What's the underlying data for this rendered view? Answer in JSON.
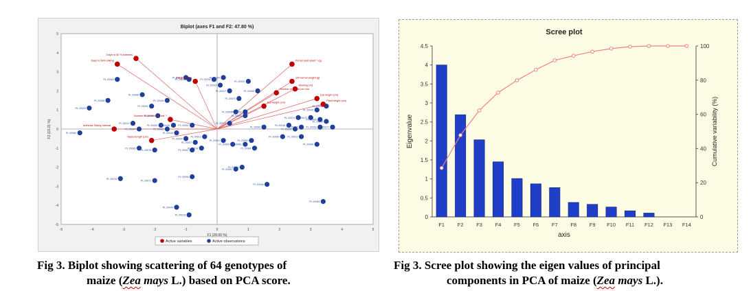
{
  "chart_data": [
    {
      "type": "scatter",
      "title": "Biplot (axes F1 and F2: 47.80 %)",
      "xlabel": "F1 (28.60 %)",
      "ylabel": "F2 (19.21 %)",
      "xlim": [
        -5,
        5
      ],
      "ylim": [
        -5,
        5
      ],
      "xticks": [
        "-5",
        "-4",
        "-3",
        "-2",
        "-1",
        "0",
        "1",
        "2",
        "3",
        "4",
        "5"
      ],
      "yticks": [
        "5",
        "4",
        "3",
        "2",
        "1",
        "0",
        "-1",
        "-2",
        "-3",
        "-4",
        "-5"
      ],
      "legend": {
        "placement": "bottom",
        "items": [
          "Active variables",
          "Active observations"
        ]
      },
      "series": [
        {
          "name": "Active variables",
          "color": "#c00000",
          "points": [
            {
              "label": "Days to 50 % Anthesis",
              "x": -2.6,
              "y": 3.7
            },
            {
              "label": "Days to 50% silking",
              "x": -3.2,
              "y": 3.4
            },
            {
              "label": "Ear girth (cm)",
              "x": -0.7,
              "y": 2.5
            },
            {
              "label": "Kernel yield plant⁻¹ (g)",
              "x": 2.4,
              "y": 3.4
            },
            {
              "label": "100 kernel weight (g)",
              "x": 2.4,
              "y": 2.5
            },
            {
              "label": "Shelling (%)",
              "x": 2.5,
              "y": 2.1
            },
            {
              "label": "Number of kernel per row",
              "x": 1.9,
              "y": 1.9
            },
            {
              "label": "Ear length (cm)",
              "x": 3.2,
              "y": 1.6
            },
            {
              "label": "Plant height (cm)",
              "x": 3.4,
              "y": 1.3
            },
            {
              "label": "Ear height (cm)",
              "x": 1.5,
              "y": 1.2
            },
            {
              "label": "Number of kernel rows ear⁻¹",
              "x": -1.5,
              "y": 0.5
            },
            {
              "label": "Anthesis Silking Interval",
              "x": -3.3,
              "y": 0.0
            },
            {
              "label": "Tassel length (cm)",
              "x": -2.1,
              "y": -0.6
            }
          ]
        },
        {
          "name": "Active observations",
          "color": "#1f3f99",
          "points": [
            {
              "label": "PL 20080",
              "x": -4.4,
              "y": -0.2
            },
            {
              "label": "PL 20029",
              "x": -4.1,
              "y": 1.1
            },
            {
              "label": "PL 20088",
              "x": -3.5,
              "y": 1.5
            },
            {
              "label": "PL 20063",
              "x": -3.2,
              "y": 2.6
            },
            {
              "label": "PL 20066",
              "x": -2.4,
              "y": 1.8
            },
            {
              "label": "PL 20031",
              "x": -2.1,
              "y": 1.2
            },
            {
              "label": "PL 20003",
              "x": -1.9,
              "y": 0.7
            },
            {
              "label": "PL 20048",
              "x": -1.6,
              "y": 1.5
            },
            {
              "label": "PL 20019",
              "x": -2.7,
              "y": 0.3
            },
            {
              "label": "PL 20047",
              "x": -2.5,
              "y": 0.0
            },
            {
              "label": "PL 20089",
              "x": -2.5,
              "y": -1.0
            },
            {
              "label": "PL 20078",
              "x": -2.0,
              "y": -1.1
            },
            {
              "label": "PL 20090",
              "x": -1.8,
              "y": 0.2
            },
            {
              "label": "PL 20082",
              "x": -1.6,
              "y": 0.0
            },
            {
              "label": "PL 20043",
              "x": -1.3,
              "y": -0.2
            },
            {
              "label": "PL 20064",
              "x": -1.0,
              "y": -0.5
            },
            {
              "label": "PL 20041",
              "x": -0.8,
              "y": 0.2
            },
            {
              "label": "PL 20007",
              "x": -0.7,
              "y": -0.7
            },
            {
              "label": "PL 20014",
              "x": -0.5,
              "y": -1.0
            },
            {
              "label": "PL 20012",
              "x": -0.4,
              "y": -0.4
            },
            {
              "label": "PL 20067",
              "x": -0.8,
              "y": -1.1
            },
            {
              "label": "PL 20030",
              "x": -0.9,
              "y": 2.6
            },
            {
              "label": "PL 20011",
              "x": -1.0,
              "y": 2.7
            },
            {
              "label": "PL 20034",
              "x": -0.1,
              "y": 2.6
            },
            {
              "label": "PL 20100",
              "x": 0.2,
              "y": 2.7
            },
            {
              "label": "PL 20032",
              "x": 0.1,
              "y": 2.3
            },
            {
              "label": "PL 20037",
              "x": 0.4,
              "y": 2.0
            },
            {
              "label": "PL 20020",
              "x": 1.0,
              "y": 2.5
            },
            {
              "label": "PL 20056",
              "x": 1.3,
              "y": 2.0
            },
            {
              "label": "PL 20070",
              "x": 0.7,
              "y": 1.6
            },
            {
              "label": "PL 20002",
              "x": 0.6,
              "y": 0.9
            },
            {
              "label": "PL 20052",
              "x": 0.9,
              "y": 0.9
            },
            {
              "label": "PL 20054",
              "x": 0.9,
              "y": 0.7
            },
            {
              "label": "PL 20013",
              "x": 0.4,
              "y": 0.3
            },
            {
              "label": "PL 20001",
              "x": 0.2,
              "y": -0.6
            },
            {
              "label": "PL 20069",
              "x": 0.5,
              "y": -0.8
            },
            {
              "label": "PL 20081",
              "x": 0.9,
              "y": -0.8
            },
            {
              "label": "PL 20092",
              "x": 1.1,
              "y": -0.6
            },
            {
              "label": "PL 20084",
              "x": 1.2,
              "y": -1.0
            },
            {
              "label": "PL 20060",
              "x": 1.5,
              "y": 0.1
            },
            {
              "label": "PL 20055",
              "x": 0.8,
              "y": -2.0
            },
            {
              "label": "PL 20061",
              "x": 0.6,
              "y": -2.1
            },
            {
              "label": "PL 20074",
              "x": 2.6,
              "y": 0.6
            },
            {
              "label": "PL 20038",
              "x": 2.3,
              "y": 0.2
            },
            {
              "label": "PL 20008",
              "x": 2.5,
              "y": 0.0
            },
            {
              "label": "PL 20050",
              "x": 2.1,
              "y": -0.4
            },
            {
              "label": "PL 20022",
              "x": 2.7,
              "y": -0.4
            },
            {
              "label": "PL 20025",
              "x": 2.7,
              "y": 0.1
            },
            {
              "label": "PL 20042",
              "x": 3.2,
              "y": 1.0
            },
            {
              "label": "PL 20072",
              "x": 3.0,
              "y": 0.6
            },
            {
              "label": "PL 20085",
              "x": 3.3,
              "y": 0.5
            },
            {
              "label": "PL 20039",
              "x": 3.5,
              "y": 0.4
            },
            {
              "label": "PL 20077",
              "x": 3.7,
              "y": 0.1
            },
            {
              "label": "PL 20093",
              "x": 3.3,
              "y": 0.1
            },
            {
              "label": "PL 20096",
              "x": 3.2,
              "y": -0.8
            },
            {
              "label": "PL 20065",
              "x": 3.5,
              "y": 1.2
            },
            {
              "label": "PL 20046",
              "x": 1.6,
              "y": -2.9
            },
            {
              "label": "PL 20083",
              "x": 3.4,
              "y": -3.8
            },
            {
              "label": "PL 20076",
              "x": -3.1,
              "y": -2.6
            },
            {
              "label": "PL 20071",
              "x": -2.0,
              "y": -2.7
            },
            {
              "label": "PL 20094",
              "x": -0.8,
              "y": -2.5
            },
            {
              "label": "PL 20040",
              "x": -1.3,
              "y": -4.1
            },
            {
              "label": "PL 20015",
              "x": -0.9,
              "y": -4.5
            },
            {
              "label": "PL 20026",
              "x": -1.4,
              "y": 0.2
            }
          ]
        }
      ]
    },
    {
      "type": "bar",
      "title": "Scree plot",
      "xlabel": "axis",
      "ylabel": "Eigenvalue",
      "y2label": "Cumulative variability (%)",
      "categories": [
        "F1",
        "F2",
        "F3",
        "F4",
        "F5",
        "F6",
        "F7",
        "F8",
        "F9",
        "F10",
        "F11",
        "F12",
        "F13",
        "F14"
      ],
      "ylim": [
        0,
        4.5
      ],
      "y2lim": [
        0,
        100
      ],
      "yticks": [
        "0",
        "0.5",
        "1",
        "1.5",
        "2",
        "2.5",
        "3",
        "3.5",
        "4",
        "4.5"
      ],
      "y2ticks": [
        "0",
        "20",
        "40",
        "60",
        "80",
        "100"
      ],
      "series": [
        {
          "kind": "bar",
          "color": "#1f3fc8",
          "values": [
            4.0,
            2.69,
            2.03,
            1.45,
            1.01,
            0.87,
            0.77,
            0.38,
            0.33,
            0.26,
            0.16,
            0.1,
            0.0,
            0.0
          ]
        },
        {
          "kind": "line",
          "axis": "right",
          "color": "#f08080",
          "values": [
            28.6,
            47.8,
            62.3,
            72.7,
            79.9,
            86.1,
            91.6,
            94.3,
            96.7,
            98.5,
            99.6,
            100,
            100,
            100
          ]
        }
      ]
    }
  ],
  "captions": {
    "left": {
      "line1": "Fig 3. Biplot showing scattering of 64 genotypes of",
      "line2_pre": "maize (",
      "line2_genus": "Zea",
      "line2_species": " mays",
      "line2_post": " L.) based on PCA score."
    },
    "right": {
      "line1": "Fig 3. Scree plot showing the eigen values of principal",
      "line2_pre": "components in PCA of maize (",
      "line2_genus": "Zea",
      "line2_species": " mays",
      "line2_post": " L.)."
    }
  }
}
